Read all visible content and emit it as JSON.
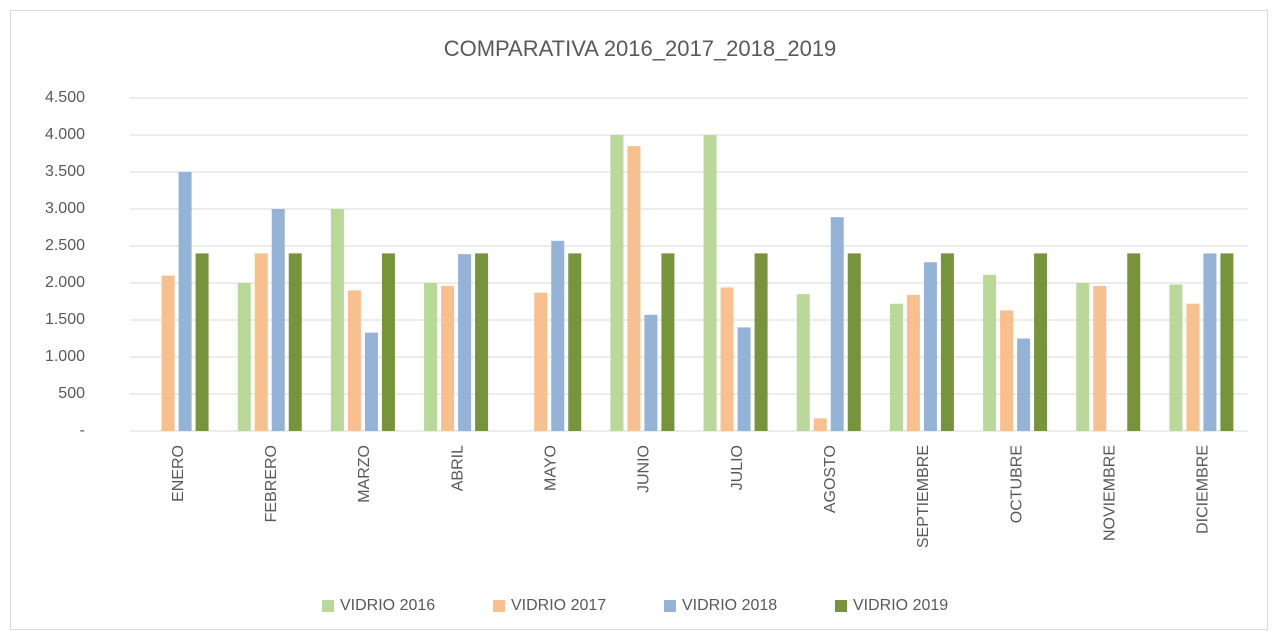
{
  "chart_data": {
    "type": "bar",
    "title": "COMPARATIVA 2016_2017_2018_2019",
    "categories": [
      "ENERO",
      "FEBRERO",
      "MARZO",
      "ABRIL",
      "MAYO",
      "JUNIO",
      "JULIO",
      "AGOSTO",
      "SEPTIEMBRE",
      "OCTUBRE",
      "NOVIEMBRE",
      "DICIEMBRE"
    ],
    "series": [
      {
        "name": "VIDRIO 2016",
        "color": "#b9d89a",
        "values": [
          null,
          2000,
          3000,
          2000,
          null,
          4000,
          4000,
          1850,
          1720,
          2110,
          2000,
          1980
        ]
      },
      {
        "name": "VIDRIO 2017",
        "color": "#f9c08f",
        "values": [
          2100,
          2400,
          1900,
          1960,
          1870,
          3850,
          1940,
          170,
          1840,
          1630,
          1960,
          1720
        ]
      },
      {
        "name": "VIDRIO 2018",
        "color": "#95b3d7",
        "values": [
          3500,
          3000,
          1330,
          2390,
          2570,
          1570,
          1400,
          2890,
          2280,
          1250,
          null,
          2400
        ]
      },
      {
        "name": "VIDRIO 2019",
        "color": "#77933c",
        "values": [
          2400,
          2400,
          2400,
          2400,
          2400,
          2400,
          2400,
          2400,
          2400,
          2400,
          2400,
          2400
        ]
      }
    ],
    "ylim": [
      0,
      4500
    ],
    "yticks": [
      {
        "value": 0,
        "label": "-"
      },
      500,
      {
        "value": 1000,
        "label": "1.000"
      },
      {
        "value": 1500,
        "label": "1.500"
      },
      {
        "value": 2000,
        "label": "2.000"
      },
      {
        "value": 2500,
        "label": "2.500"
      },
      {
        "value": 3000,
        "label": "3.000"
      },
      {
        "value": 3500,
        "label": "3.500"
      },
      {
        "value": 4000,
        "label": "4.000"
      },
      {
        "value": 4500,
        "label": "4.500"
      }
    ],
    "grid": true,
    "legend": "bottom"
  }
}
